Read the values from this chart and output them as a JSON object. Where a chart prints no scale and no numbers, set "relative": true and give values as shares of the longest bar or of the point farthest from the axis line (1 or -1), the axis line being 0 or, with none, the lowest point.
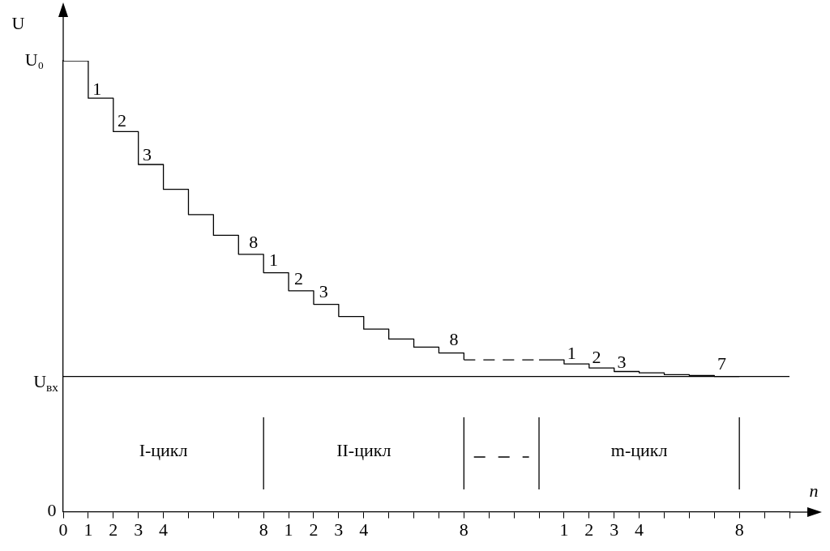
{
  "chart_data": {
    "type": "step",
    "relative": true,
    "xlabel": "n",
    "categories": [
      "0",
      "1",
      "2",
      "3",
      "4",
      null,
      null,
      null,
      "8",
      "1",
      "2",
      "3",
      "4",
      null,
      null,
      null,
      "8",
      null,
      null,
      null,
      "1",
      "2",
      "3",
      "4",
      null,
      null,
      null,
      "8",
      null,
      null
    ],
    "series": [
      {
        "color": "#000000",
        "line_style": "solid",
        "values": [
          1,
          0.917,
          0.843,
          0.77,
          0.715,
          0.659,
          0.613,
          0.571,
          0.53,
          0.49,
          0.46,
          0.433,
          0.405,
          0.383,
          0.365,
          0.352,
          0.337,
          null,
          null,
          null,
          null,
          null,
          null,
          null,
          null,
          null,
          null,
          null,
          null,
          null
        ]
      },
      {
        "color": "#000000",
        "line_style": "dashed",
        "values": [
          null,
          null,
          null,
          null,
          null,
          null,
          null,
          null,
          null,
          null,
          null,
          null,
          null,
          null,
          null,
          null,
          0.337,
          0.337,
          0.337,
          0.337,
          null,
          null,
          null,
          null,
          null,
          null,
          null,
          null,
          null,
          null
        ]
      },
      {
        "color": "#000000",
        "line_style": "solid",
        "values": [
          null,
          null,
          null,
          null,
          null,
          null,
          null,
          null,
          null,
          null,
          null,
          null,
          null,
          null,
          null,
          null,
          null,
          null,
          null,
          0.337,
          0.328,
          0.319,
          0.311,
          0.308,
          0.304,
          0.302,
          0.3,
          0.3,
          null,
          null
        ]
      }
    ],
    "ref_lines": [
      {
        "axis": "y",
        "value": 0.3,
        "label": "U$_{вх}$"
      }
    ],
    "annotations": [
      "U",
      "U₀",
      "0",
      "1",
      "2",
      "3",
      "8",
      "1",
      "2",
      "3",
      "8",
      "1",
      "2",
      "3",
      "7",
      "I-цикл",
      "II-цикл",
      "m-цикл"
    ]
  }
}
